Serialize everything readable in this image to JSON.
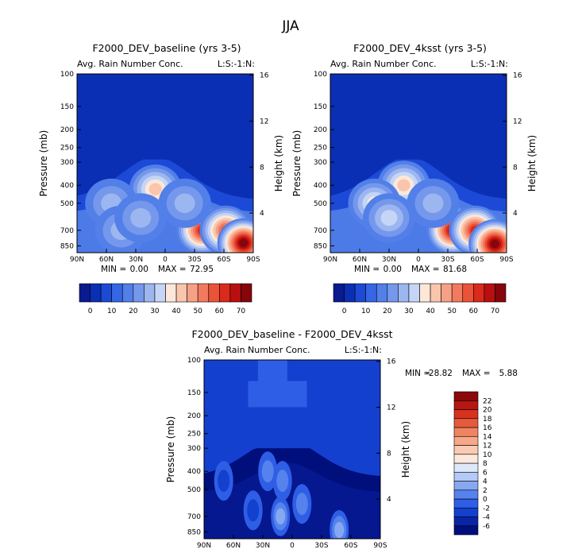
{
  "figure": {
    "title": "JJA",
    "colors": {
      "background_field": "#0a36b0",
      "deep": "#00157c",
      "axis": "#000000"
    }
  },
  "chart_data": [
    {
      "type": "heatmap",
      "title": "F2000_DEV_baseline (yrs 3-5)",
      "subtitle": "Avg. Rain Number Conc.",
      "corner_label": "L:S:-1:N:",
      "xlabel": "",
      "ylabel": "Pressure (mb)",
      "ylabel_right": "Height (km)",
      "x_ticks": [
        "90N",
        "60N",
        "30N",
        "0",
        "30S",
        "60S",
        "90S"
      ],
      "y_ticks": [
        "100",
        "150",
        "200",
        "250",
        "300",
        "400",
        "500",
        "700",
        "850"
      ],
      "y2_ticks": [
        "16",
        "12",
        "8",
        "4"
      ],
      "xlim": [
        90,
        -90
      ],
      "ylim": [
        100,
        925
      ],
      "stats": {
        "min_label": "MIN =",
        "min": "0.00",
        "max_label": "MAX =",
        "max": "72.95"
      },
      "colorbar": {
        "levels": [
          "0",
          "10",
          "20",
          "30",
          "40",
          "50",
          "60",
          "70"
        ],
        "colors": [
          "#0a1a8f",
          "#0b2fb4",
          "#1c4ad6",
          "#3566e4",
          "#527fe8",
          "#7598ec",
          "#9cb6f0",
          "#c4d5f6",
          "#fde7d9",
          "#f9c5ac",
          "#f6a185",
          "#f27a5f",
          "#ea5338",
          "#d92a1c",
          "#b80f10",
          "#85060b"
        ]
      },
      "blobs": [
        {
          "lat": 10,
          "p": 420,
          "value": 40
        },
        {
          "lat": -38,
          "p": 700,
          "value": 62
        },
        {
          "lat": -62,
          "p": 700,
          "value": 58
        },
        {
          "lat": -80,
          "p": 820,
          "value": 72
        },
        {
          "lat": 55,
          "p": 500,
          "value": 28
        },
        {
          "lat": 45,
          "p": 700,
          "value": 26
        },
        {
          "lat": -20,
          "p": 500,
          "value": 26
        },
        {
          "lat": 25,
          "p": 600,
          "value": 30
        }
      ]
    },
    {
      "type": "heatmap",
      "title": "F2000_DEV_4ksst (yrs 3-5)",
      "subtitle": "Avg. Rain Number Conc.",
      "corner_label": "L:S:-1:N:",
      "xlabel": "",
      "ylabel": "Pressure (mb)",
      "ylabel_right": "Height (km)",
      "x_ticks": [
        "90N",
        "60N",
        "30N",
        "0",
        "30S",
        "60S",
        "90S"
      ],
      "y_ticks": [
        "100",
        "150",
        "200",
        "250",
        "300",
        "400",
        "500",
        "700",
        "850"
      ],
      "y2_ticks": [
        "16",
        "12",
        "8",
        "4"
      ],
      "xlim": [
        90,
        -90
      ],
      "ylim": [
        100,
        925
      ],
      "stats": {
        "min_label": "MIN =",
        "min": "0.00",
        "max_label": "MAX =",
        "max": "81.68"
      },
      "colorbar": {
        "levels": [
          "0",
          "10",
          "20",
          "30",
          "40",
          "50",
          "60",
          "70"
        ],
        "colors": [
          "#0a1a8f",
          "#0b2fb4",
          "#1c4ad6",
          "#3566e4",
          "#527fe8",
          "#7598ec",
          "#9cb6f0",
          "#c4d5f6",
          "#fde7d9",
          "#f9c5ac",
          "#f6a185",
          "#f27a5f",
          "#ea5338",
          "#d92a1c",
          "#b80f10",
          "#85060b"
        ]
      },
      "blobs": [
        {
          "lat": 15,
          "p": 400,
          "value": 42
        },
        {
          "lat": 45,
          "p": 500,
          "value": 38
        },
        {
          "lat": -35,
          "p": 700,
          "value": 66
        },
        {
          "lat": -58,
          "p": 700,
          "value": 62
        },
        {
          "lat": -78,
          "p": 830,
          "value": 81
        },
        {
          "lat": 30,
          "p": 600,
          "value": 32
        },
        {
          "lat": -15,
          "p": 500,
          "value": 28
        }
      ]
    },
    {
      "type": "heatmap",
      "title": "F2000_DEV_baseline - F2000_DEV_4ksst",
      "subtitle": "Avg. Rain Number Conc.",
      "corner_label": "L:S:-1:N:",
      "xlabel": "",
      "ylabel": "Pressure (mb)",
      "ylabel_right": "Height (km)",
      "x_ticks": [
        "90N",
        "60N",
        "30N",
        "0",
        "30S",
        "60S",
        "90S"
      ],
      "y_ticks": [
        "100",
        "150",
        "200",
        "250",
        "300",
        "400",
        "500",
        "700",
        "850"
      ],
      "y2_ticks": [
        "16",
        "12",
        "8",
        "4"
      ],
      "xlim": [
        90,
        -90
      ],
      "ylim": [
        100,
        925
      ],
      "stats": {
        "min_label": "MIN =",
        "min": "-28.82",
        "max_label": "MAX =",
        "max": "5.88"
      },
      "colorbar": {
        "levels": [
          "-6",
          "-4",
          "-2",
          "0",
          "2",
          "4",
          "6",
          "8",
          "10",
          "12",
          "14",
          "16",
          "18",
          "20",
          "22"
        ],
        "colors": [
          "#000f7c",
          "#0a24a6",
          "#1440cf",
          "#2f5ee6",
          "#5582ec",
          "#86a8f2",
          "#b4caf7",
          "#dde8fb",
          "#fde8dc",
          "#fbcab2",
          "#f7a889",
          "#f08462",
          "#e65a3c",
          "#d6331f",
          "#b71612",
          "#8a0a0c"
        ]
      },
      "blobs": [
        {
          "lat": 25,
          "p": 400,
          "value": 2
        },
        {
          "lat": 10,
          "p": 450,
          "value": 1
        },
        {
          "lat": 12,
          "p": 700,
          "value": 4
        },
        {
          "lat": -10,
          "p": 600,
          "value": 2
        },
        {
          "lat": -48,
          "p": 830,
          "value": 3
        },
        {
          "lat": 70,
          "p": 450,
          "value": -2
        },
        {
          "lat": 40,
          "p": 650,
          "value": -2
        }
      ]
    }
  ]
}
